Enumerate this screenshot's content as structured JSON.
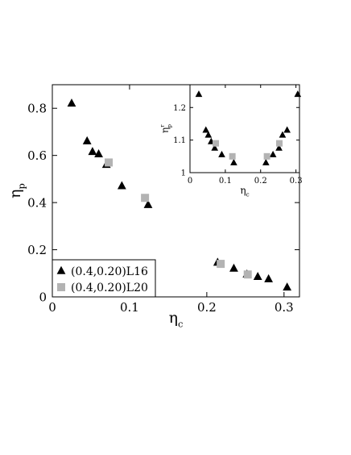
{
  "chart_data": [
    {
      "type": "scatter",
      "title": "",
      "xlabel": "η",
      "xlabel_sub": "c",
      "ylabel": "η",
      "ylabel_sub": "p",
      "xlim": [
        0,
        0.32
      ],
      "ylim": [
        0,
        0.9
      ],
      "x_ticks": [
        0,
        0.1,
        0.2,
        0.3
      ],
      "x_tick_labels": [
        "0",
        "0.1",
        "0.2",
        "0.3"
      ],
      "y_ticks": [
        0,
        0.2,
        0.4,
        0.6,
        0.8
      ],
      "y_tick_labels": [
        "0",
        "0.2",
        "0.4",
        "0.6",
        "0.8"
      ],
      "grid": false,
      "legend_position": "bottom-left",
      "series": [
        {
          "name": "(0.4,0.20)L16",
          "marker": "triangle",
          "color": "#000000",
          "points": [
            [
              0.025,
              0.82
            ],
            [
              0.045,
              0.66
            ],
            [
              0.052,
              0.615
            ],
            [
              0.06,
              0.605
            ],
            [
              0.07,
              0.56
            ],
            [
              0.09,
              0.47
            ],
            [
              0.124,
              0.39
            ],
            [
              0.214,
              0.145
            ],
            [
              0.235,
              0.12
            ],
            [
              0.252,
              0.095
            ],
            [
              0.266,
              0.085
            ],
            [
              0.28,
              0.075
            ],
            [
              0.304,
              0.04
            ]
          ]
        },
        {
          "name": "(0.4,0.20)L20",
          "marker": "square",
          "color": "#b3b3b3",
          "points": [
            [
              0.073,
              0.57
            ],
            [
              0.12,
              0.42
            ],
            [
              0.218,
              0.14
            ],
            [
              0.253,
              0.095
            ]
          ]
        }
      ]
    },
    {
      "type": "scatter",
      "title": "",
      "xlabel": "η",
      "xlabel_sub": "c",
      "ylabel": "η",
      "ylabel_sub": "p",
      "ylabel_sup": "r",
      "xlim": [
        0,
        0.31
      ],
      "ylim": [
        1.0,
        1.27
      ],
      "x_ticks": [
        0,
        0.1,
        0.2,
        0.3
      ],
      "x_tick_labels": [
        "0",
        "0.1",
        "0.2",
        "0.3"
      ],
      "y_ticks": [
        1.0,
        1.1,
        1.2
      ],
      "y_tick_labels": [
        "1",
        "1.1",
        "1.2"
      ],
      "grid": false,
      "series": [
        {
          "name": "(0.4,0.20)L16",
          "marker": "triangle",
          "color": "#000000",
          "points": [
            [
              0.025,
              1.24
            ],
            [
              0.045,
              1.13
            ],
            [
              0.052,
              1.115
            ],
            [
              0.06,
              1.095
            ],
            [
              0.07,
              1.075
            ],
            [
              0.09,
              1.055
            ],
            [
              0.124,
              1.03
            ],
            [
              0.215,
              1.03
            ],
            [
              0.235,
              1.055
            ],
            [
              0.252,
              1.075
            ],
            [
              0.262,
              1.115
            ],
            [
              0.275,
              1.13
            ],
            [
              0.305,
              1.24
            ]
          ]
        },
        {
          "name": "(0.4,0.20)L20",
          "marker": "square",
          "color": "#b3b3b3",
          "points": [
            [
              0.073,
              1.09
            ],
            [
              0.12,
              1.05
            ],
            [
              0.218,
              1.05
            ],
            [
              0.253,
              1.09
            ]
          ]
        }
      ]
    }
  ]
}
